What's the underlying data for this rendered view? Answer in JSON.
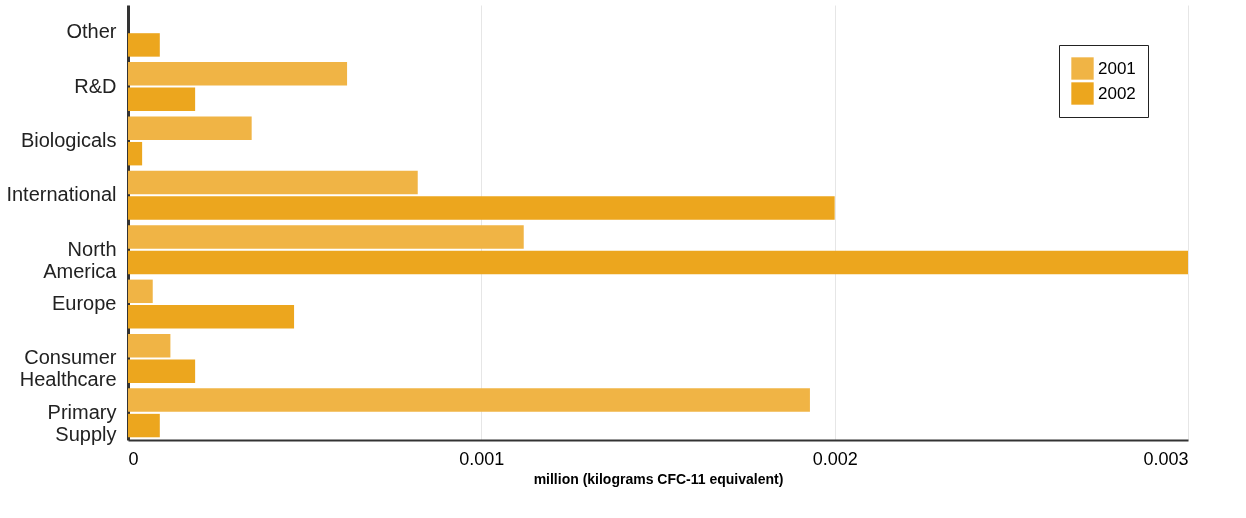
{
  "chart_data": {
    "type": "bar",
    "orientation": "horizontal",
    "xlabel": "million (kilograms CFC-11 equivalent)",
    "categories": [
      "Other",
      "R&D",
      "Biologicals",
      "International",
      "North America",
      "Europe",
      "Consumer Healthcare",
      "Primary Supply"
    ],
    "series": [
      {
        "name": "2001",
        "color": "#f0b445",
        "values": [
          null,
          0.00062,
          0.00035,
          0.00082,
          0.00112,
          7e-05,
          0.00012,
          0.00193
        ]
      },
      {
        "name": "2002",
        "color": "#eca61e",
        "values": [
          9e-05,
          0.00019,
          4e-05,
          0.002,
          0.003,
          0.00047,
          0.00019,
          9e-05
        ]
      }
    ],
    "xlim": [
      0,
      0.003
    ],
    "xticks": [
      0,
      0.001,
      0.002,
      0.003
    ],
    "grid": "x",
    "legend": "top right"
  }
}
